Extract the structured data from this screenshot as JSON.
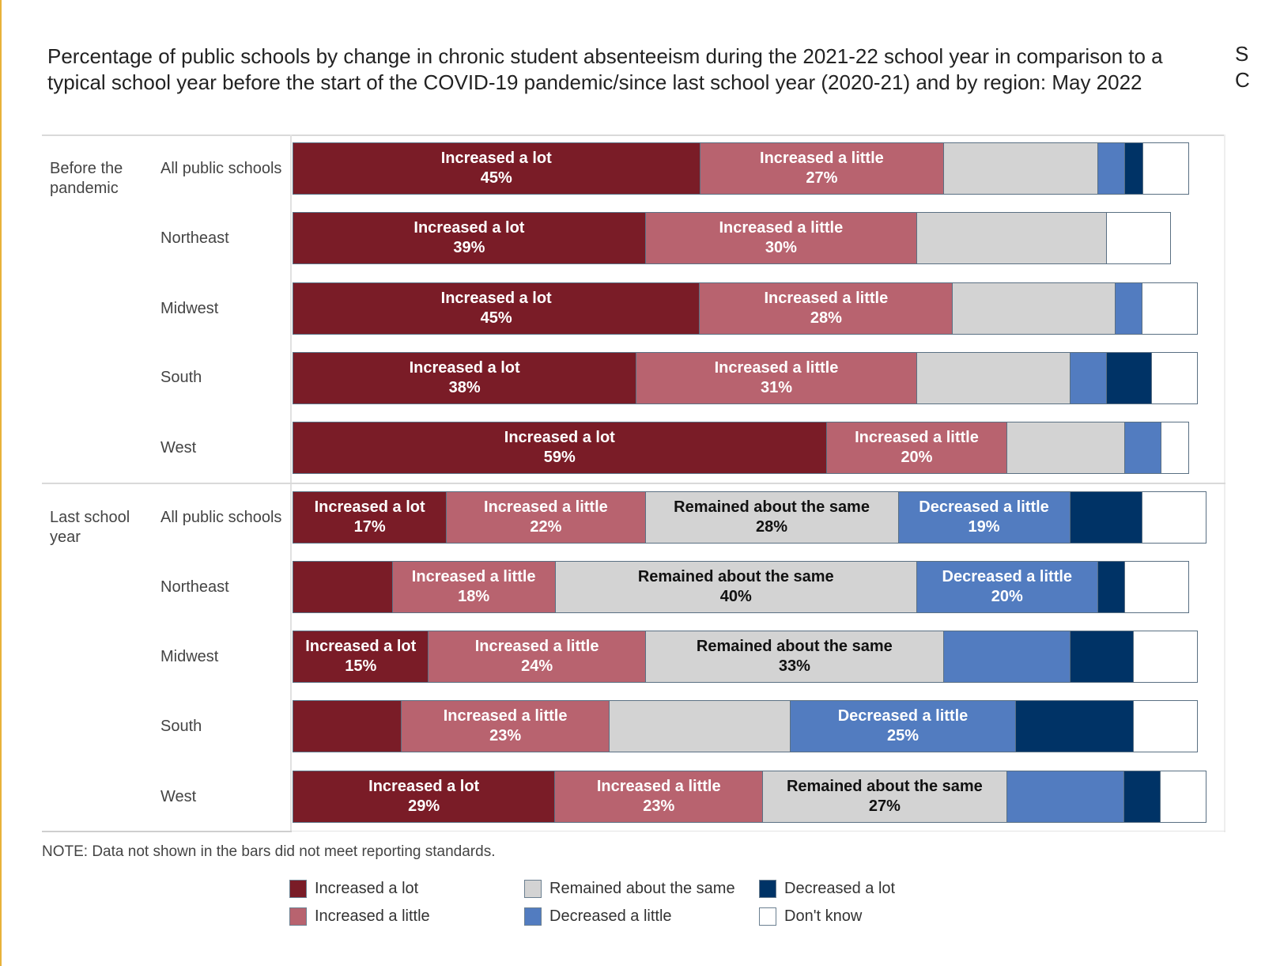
{
  "title": "Percentage of public schools by change in chronic student absenteeism during the 2021-22 school year in comparison to a typical school year before the start of the COVID-19 pandemic/since last school year (2020-21) and by region: May 2022",
  "edge_glyph": "S C",
  "note": "NOTE: Data not shown in the bars did not meet reporting standards.",
  "colors": {
    "increased_a_lot": "#7a1c27",
    "increased_a_little": "#b8636f",
    "remained_about_the_same": "#d3d3d3",
    "decreased_a_little": "#527cc0",
    "decreased_a_lot": "#003366",
    "dont_know": "#ffffff"
  },
  "legend": [
    {
      "key": "increased_a_lot",
      "label": "Increased a lot"
    },
    {
      "key": "increased_a_little",
      "label": "Increased a little"
    },
    {
      "key": "remained_about_the_same",
      "label": "Remained about the same"
    },
    {
      "key": "decreased_a_little",
      "label": "Decreased a little"
    },
    {
      "key": "decreased_a_lot",
      "label": "Decreased a lot"
    },
    {
      "key": "dont_know",
      "label": "Don't know"
    }
  ],
  "chart_data": {
    "type": "bar",
    "orientation": "horizontal-stacked-100",
    "title": "Percentage of public schools by change in chronic student absenteeism during the 2021-22 school year in comparison to a typical school year before the start of the COVID-19 pandemic/since last school year (2020-21) and by region: May 2022",
    "xlabel": "",
    "ylabel": "",
    "xlim": [
      0,
      100
    ],
    "grid": false,
    "legend_position": "bottom",
    "series_order": [
      "Increased a lot",
      "Increased a little",
      "Remained about the same",
      "Decreased a little",
      "Decreased a lot",
      "Don't know"
    ],
    "groups": [
      {
        "label": "Before the pandemic",
        "rows": [
          {
            "label": "All public schools",
            "values": [
              45,
              27,
              17,
              3,
              2,
              5
            ],
            "labeled": [
              true,
              true,
              false,
              false,
              false,
              false
            ]
          },
          {
            "label": "Northeast",
            "values": [
              39,
              30,
              21,
              0,
              0,
              7
            ],
            "labeled": [
              true,
              true,
              false,
              false,
              false,
              false
            ]
          },
          {
            "label": "Midwest",
            "values": [
              45,
              28,
              18,
              3,
              0,
              6
            ],
            "labeled": [
              true,
              true,
              false,
              false,
              false,
              false
            ]
          },
          {
            "label": "South",
            "values": [
              38,
              31,
              17,
              4,
              5,
              5
            ],
            "labeled": [
              true,
              true,
              false,
              false,
              false,
              false
            ]
          },
          {
            "label": "West",
            "values": [
              59,
              20,
              13,
              4,
              0,
              3
            ],
            "labeled": [
              true,
              true,
              false,
              false,
              false,
              false
            ]
          }
        ]
      },
      {
        "label": "Last school year",
        "rows": [
          {
            "label": "All public schools",
            "values": [
              17,
              22,
              28,
              19,
              8,
              7
            ],
            "labeled": [
              true,
              true,
              true,
              true,
              false,
              false
            ]
          },
          {
            "label": "Northeast",
            "values": [
              11,
              18,
              40,
              20,
              3,
              7
            ],
            "labeled": [
              false,
              true,
              true,
              true,
              false,
              false
            ]
          },
          {
            "label": "Midwest",
            "values": [
              15,
              24,
              33,
              14,
              7,
              7
            ],
            "labeled": [
              true,
              true,
              true,
              false,
              false,
              false
            ]
          },
          {
            "label": "South",
            "values": [
              12,
              23,
              20,
              25,
              13,
              7
            ],
            "labeled": [
              false,
              true,
              false,
              true,
              false,
              false
            ]
          },
          {
            "label": "West",
            "values": [
              29,
              23,
              27,
              13,
              4,
              5
            ],
            "labeled": [
              true,
              true,
              true,
              false,
              false,
              false
            ]
          }
        ]
      }
    ]
  }
}
